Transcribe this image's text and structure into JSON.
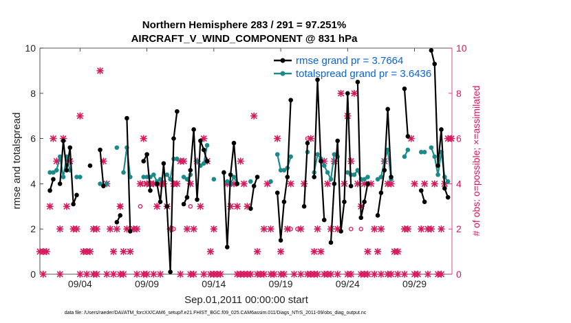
{
  "chart_data": {
    "type": "line",
    "title": "Northern Hemisphere 283 / 291 = 97.251%",
    "subtitle": "AIRCRAFT_V_WIND_COMPONENT @ 831 hPa",
    "xlabel": "Sep.01,2011 00:00:00 start",
    "ylabel": "rmse and totalspread",
    "ylabel_right": "# of obs: o=possible; ×=assimilated",
    "footer": "data file: /Users/raeder/DAI/ATM_forcXX/CAM6_setup/f.e21.FHIST_BGC.f09_025.CAM6assim.011/Diags_NTrS_2011-09/obs_diag_output.nc",
    "xlim": [
      1,
      31.8
    ],
    "ylim": [
      0,
      10
    ],
    "ylim_right": [
      0,
      10
    ],
    "xticks": [
      4,
      9,
      14,
      19,
      24,
      29
    ],
    "xtick_labels": [
      "09/04",
      "09/09",
      "09/14",
      "09/19",
      "09/24",
      "09/29"
    ],
    "yticks": [
      0,
      2,
      4,
      6,
      8,
      10
    ],
    "yticks_right": [
      0,
      2,
      4,
      6,
      8,
      10
    ],
    "grid": false,
    "legend_position": "top-right",
    "series": [
      {
        "name": "rmse grand pr = 3.7664",
        "color": "#000000",
        "points": [
          [
            1.75,
            3.7
          ],
          [
            2.0,
            4.2
          ],
          [
            2.5,
            4.0
          ],
          [
            2.75,
            5.9
          ],
          [
            3.0,
            4.6
          ],
          [
            3.25,
            5.6
          ],
          [
            3.5,
            3.1
          ],
          [
            3.75,
            3.5
          ],
          [
            4.75,
            4.8
          ],
          [
            5.5,
            5.5
          ],
          [
            5.75,
            3.9
          ],
          [
            6.75,
            2.3
          ],
          [
            7.0,
            2.6
          ],
          [
            7.5,
            6.9
          ],
          [
            7.75,
            1.9
          ],
          [
            8.75,
            5.0
          ],
          [
            9.0,
            5.3
          ],
          [
            9.25,
            3.7
          ],
          [
            9.75,
            4.0
          ],
          [
            10.0,
            3.2
          ],
          [
            10.25,
            4.9
          ],
          [
            10.5,
            3.0
          ],
          [
            10.75,
            0.1
          ],
          [
            11.0,
            6.0
          ],
          [
            11.25,
            7.2
          ],
          [
            11.75,
            3.1
          ],
          [
            12.0,
            3.4
          ],
          [
            12.25,
            4.6
          ],
          [
            12.5,
            6.4
          ],
          [
            12.75,
            3.3
          ],
          [
            13.0,
            5.9
          ],
          [
            13.25,
            5.5
          ],
          [
            13.5,
            5.0
          ],
          [
            14.75,
            4.5
          ],
          [
            15.0,
            1.2
          ],
          [
            15.25,
            4.4
          ],
          [
            15.5,
            5.8
          ],
          [
            15.75,
            4.0
          ],
          [
            16.75,
            2.9
          ],
          [
            17.0,
            3.9
          ],
          [
            17.25,
            4.3
          ],
          [
            18.75,
            3.6
          ],
          [
            19.0,
            1.5
          ],
          [
            19.25,
            3.2
          ],
          [
            19.5,
            4.3
          ],
          [
            19.75,
            7.7
          ],
          [
            20.75,
            3.0
          ],
          [
            21.0,
            5.8
          ],
          [
            21.5,
            4.3
          ],
          [
            21.75,
            8.6
          ],
          [
            22.0,
            5.0
          ],
          [
            22.25,
            2.4
          ],
          [
            22.75,
            1.4
          ],
          [
            23.0,
            4.0
          ],
          [
            23.25,
            5.9
          ],
          [
            23.5,
            1.9
          ],
          [
            23.75,
            3.2
          ],
          [
            24.0,
            8.0
          ],
          [
            24.25,
            3.9
          ],
          [
            24.75,
            8.5
          ],
          [
            25.0,
            2.5
          ],
          [
            25.25,
            3.2
          ],
          [
            25.5,
            4.0
          ],
          [
            26.25,
            2.6
          ],
          [
            26.5,
            3.6
          ],
          [
            26.75,
            4.6
          ],
          [
            27.0,
            7.3
          ],
          [
            27.25,
            4.3
          ],
          [
            28.25,
            8.2
          ],
          [
            28.5,
            6.1
          ],
          [
            29.5,
            3.7
          ],
          [
            29.75,
            3.2
          ],
          [
            30.25,
            9.9
          ],
          [
            30.5,
            9.3
          ],
          [
            30.75,
            4.8
          ],
          [
            31.0,
            6.4
          ],
          [
            31.25,
            3.8
          ],
          [
            31.5,
            3.4
          ]
        ]
      },
      {
        "name": "totalspread grand pr = 3.6436",
        "color": "#1b8a8a",
        "points": [
          [
            1.75,
            4.5
          ],
          [
            2.0,
            4.5
          ],
          [
            2.25,
            4.6
          ],
          [
            2.5,
            5.2
          ],
          [
            2.75,
            4.3
          ],
          [
            3.0,
            5.2
          ],
          [
            3.25,
            4.6
          ],
          [
            3.75,
            4.3
          ],
          [
            4.0,
            4.3
          ],
          [
            5.5,
            4.0
          ],
          [
            6.0,
            4.0
          ],
          [
            6.75,
            5.6
          ],
          [
            7.25,
            4.5
          ],
          [
            7.5,
            5.6
          ],
          [
            7.75,
            4.3
          ],
          [
            8.75,
            4.3
          ],
          [
            9.0,
            4.3
          ],
          [
            9.25,
            4.3
          ],
          [
            9.5,
            4.4
          ],
          [
            9.75,
            4.1
          ],
          [
            10.0,
            4.2
          ],
          [
            10.5,
            4.4
          ],
          [
            10.75,
            4.2
          ],
          [
            11.0,
            5.1
          ],
          [
            11.25,
            5.1
          ],
          [
            11.75,
            4.3
          ],
          [
            12.0,
            4.2
          ],
          [
            12.25,
            4.4
          ],
          [
            12.75,
            5.0
          ],
          [
            13.0,
            4.8
          ],
          [
            13.25,
            4.9
          ],
          [
            13.5,
            5.7
          ],
          [
            14.0,
            4.2
          ],
          [
            15.0,
            4.1
          ],
          [
            15.25,
            4.0
          ],
          [
            15.5,
            4.3
          ],
          [
            15.75,
            4.0
          ],
          [
            16.75,
            4.1
          ],
          [
            18.25,
            4.1
          ],
          [
            18.75,
            5.3
          ],
          [
            19.0,
            4.6
          ],
          [
            19.25,
            4.6
          ],
          [
            19.5,
            4.7
          ],
          [
            19.75,
            5.2
          ],
          [
            21.0,
            5.4
          ],
          [
            21.5,
            4.5
          ],
          [
            21.75,
            5.3
          ],
          [
            22.0,
            5.1
          ],
          [
            22.25,
            4.8
          ],
          [
            22.5,
            4.5
          ],
          [
            22.75,
            4.2
          ],
          [
            23.0,
            5.3
          ],
          [
            23.25,
            5.2
          ],
          [
            24.0,
            4.5
          ],
          [
            24.25,
            4.4
          ],
          [
            24.5,
            4.4
          ],
          [
            24.75,
            4.6
          ],
          [
            25.0,
            4.2
          ],
          [
            25.25,
            4.2
          ],
          [
            25.5,
            4.3
          ],
          [
            26.25,
            4.2
          ],
          [
            26.5,
            4.3
          ],
          [
            26.75,
            5.0
          ],
          [
            27.0,
            5.5
          ],
          [
            27.25,
            4.2
          ],
          [
            28.25,
            5.2
          ],
          [
            28.5,
            5.5
          ],
          [
            29.5,
            5.4
          ],
          [
            29.75,
            5.4
          ],
          [
            30.25,
            5.6
          ],
          [
            30.5,
            5.2
          ],
          [
            30.75,
            4.4
          ],
          [
            31.0,
            5.4
          ],
          [
            31.25,
            4.3
          ],
          [
            31.5,
            4.1
          ]
        ]
      }
    ],
    "obs_possible": {
      "marker": "o",
      "color": "#d6185c",
      "points": [
        [
          8.5,
          3.0
        ],
        [
          8.75,
          4.0
        ],
        [
          11.0,
          2.0
        ],
        [
          12.25,
          3.0
        ],
        [
          21.0,
          6.0
        ],
        [
          24.25,
          2.0
        ],
        [
          25.0,
          2.0
        ],
        [
          19.75,
          2.0
        ],
        [
          20.25,
          2.0
        ],
        [
          7.0,
          3.0
        ]
      ]
    },
    "obs_assimilated": {
      "marker": "x",
      "color": "#d6185c",
      "points": [
        [
          1.0,
          1.0
        ],
        [
          1.25,
          1.0
        ],
        [
          1.5,
          1.0
        ],
        [
          1.75,
          3.0
        ],
        [
          2.0,
          6.0
        ],
        [
          2.25,
          5.0
        ],
        [
          2.5,
          2.0
        ],
        [
          2.75,
          6.0
        ],
        [
          3.0,
          3.0
        ],
        [
          3.25,
          5.0
        ],
        [
          3.5,
          2.0
        ],
        [
          3.75,
          2.0
        ],
        [
          4.0,
          7.0
        ],
        [
          4.25,
          1.0
        ],
        [
          4.5,
          1.0
        ],
        [
          4.75,
          1.0
        ],
        [
          5.0,
          2.0
        ],
        [
          5.25,
          2.0
        ],
        [
          5.5,
          9.0
        ],
        [
          5.75,
          5.0
        ],
        [
          6.0,
          4.0
        ],
        [
          6.25,
          2.0
        ],
        [
          6.5,
          1.0
        ],
        [
          6.75,
          2.0
        ],
        [
          7.0,
          3.0
        ],
        [
          7.25,
          1.0
        ],
        [
          7.5,
          2.0
        ],
        [
          7.75,
          1.0
        ],
        [
          8.0,
          2.0
        ],
        [
          8.25,
          2.0
        ],
        [
          8.5,
          4.0
        ],
        [
          8.75,
          6.0
        ],
        [
          9.0,
          4.0
        ],
        [
          9.25,
          4.0
        ],
        [
          9.5,
          4.0
        ],
        [
          9.75,
          3.0
        ],
        [
          10.0,
          4.0
        ],
        [
          10.25,
          4.0
        ],
        [
          10.5,
          3.0
        ],
        [
          10.75,
          2.0
        ],
        [
          11.0,
          4.0
        ],
        [
          11.25,
          4.0
        ],
        [
          11.5,
          5.0
        ],
        [
          11.75,
          5.0
        ],
        [
          12.0,
          2.0
        ],
        [
          12.25,
          4.0
        ],
        [
          12.5,
          2.0
        ],
        [
          12.75,
          5.0
        ],
        [
          13.0,
          3.0
        ],
        [
          13.25,
          6.0
        ],
        [
          13.5,
          5.0
        ],
        [
          13.75,
          1.0
        ],
        [
          14.0,
          2.0
        ],
        [
          15.0,
          4.0
        ],
        [
          15.25,
          3.0
        ],
        [
          15.5,
          4.0
        ],
        [
          15.75,
          3.0
        ],
        [
          16.0,
          5.0
        ],
        [
          16.25,
          4.0
        ],
        [
          16.5,
          3.0
        ],
        [
          17.0,
          7.0
        ],
        [
          17.25,
          1.0
        ],
        [
          17.75,
          2.0
        ],
        [
          18.0,
          4.0
        ],
        [
          18.25,
          2.0
        ],
        [
          18.75,
          6.0
        ],
        [
          19.0,
          1.0
        ],
        [
          19.5,
          2.0
        ],
        [
          19.75,
          4.0
        ],
        [
          20.5,
          2.0
        ],
        [
          20.75,
          4.0
        ],
        [
          21.25,
          6.0
        ],
        [
          21.5,
          1.0
        ],
        [
          21.75,
          2.0
        ],
        [
          22.0,
          1.0
        ],
        [
          22.25,
          5.0
        ],
        [
          22.5,
          4.0
        ],
        [
          22.75,
          2.0
        ],
        [
          23.0,
          5.0
        ],
        [
          23.25,
          2.0
        ],
        [
          23.5,
          8.0
        ],
        [
          23.75,
          4.0
        ],
        [
          24.0,
          7.0
        ],
        [
          24.25,
          5.0
        ],
        [
          24.5,
          8.0
        ],
        [
          24.75,
          4.0
        ],
        [
          25.0,
          3.0
        ],
        [
          25.25,
          4.0
        ],
        [
          25.5,
          1.0
        ],
        [
          25.75,
          4.0
        ],
        [
          26.0,
          2.0
        ],
        [
          26.25,
          1.0
        ],
        [
          26.5,
          2.0
        ],
        [
          26.75,
          5.0
        ],
        [
          27.0,
          4.0
        ],
        [
          27.25,
          4.0
        ],
        [
          27.5,
          1.0
        ],
        [
          27.75,
          1.0
        ],
        [
          28.25,
          2.0
        ],
        [
          28.5,
          2.0
        ],
        [
          28.75,
          6.0
        ],
        [
          29.0,
          4.0
        ],
        [
          29.5,
          2.0
        ],
        [
          29.75,
          4.0
        ],
        [
          30.0,
          2.0
        ],
        [
          30.25,
          2.0
        ],
        [
          30.5,
          4.0
        ],
        [
          31.0,
          2.0
        ],
        [
          31.25,
          4.0
        ],
        [
          31.5,
          6.0
        ],
        [
          31.75,
          6.0
        ]
      ]
    },
    "obs_zero_days": [
      1.25,
      2.5,
      4.0,
      4.5,
      5.0,
      5.25,
      6.0,
      6.5,
      7.0,
      7.25,
      8.25,
      8.75,
      9.0,
      9.5,
      10.0,
      11.5,
      12.25,
      12.5,
      13.25,
      13.75,
      14.0,
      14.25,
      14.5,
      15.75,
      16.0,
      16.25,
      16.5,
      16.75,
      17.25,
      17.5,
      17.75,
      18.25,
      18.5,
      19.0,
      19.25,
      20.0,
      20.5,
      21.0,
      21.25,
      21.5,
      21.75,
      22.25,
      22.5,
      22.75,
      23.25,
      24.0,
      24.25,
      25.0,
      25.25,
      25.5,
      26.0,
      26.5,
      27.0,
      27.25,
      27.75,
      28.25,
      29.0,
      29.25,
      30.0,
      30.75,
      31.0
    ]
  }
}
